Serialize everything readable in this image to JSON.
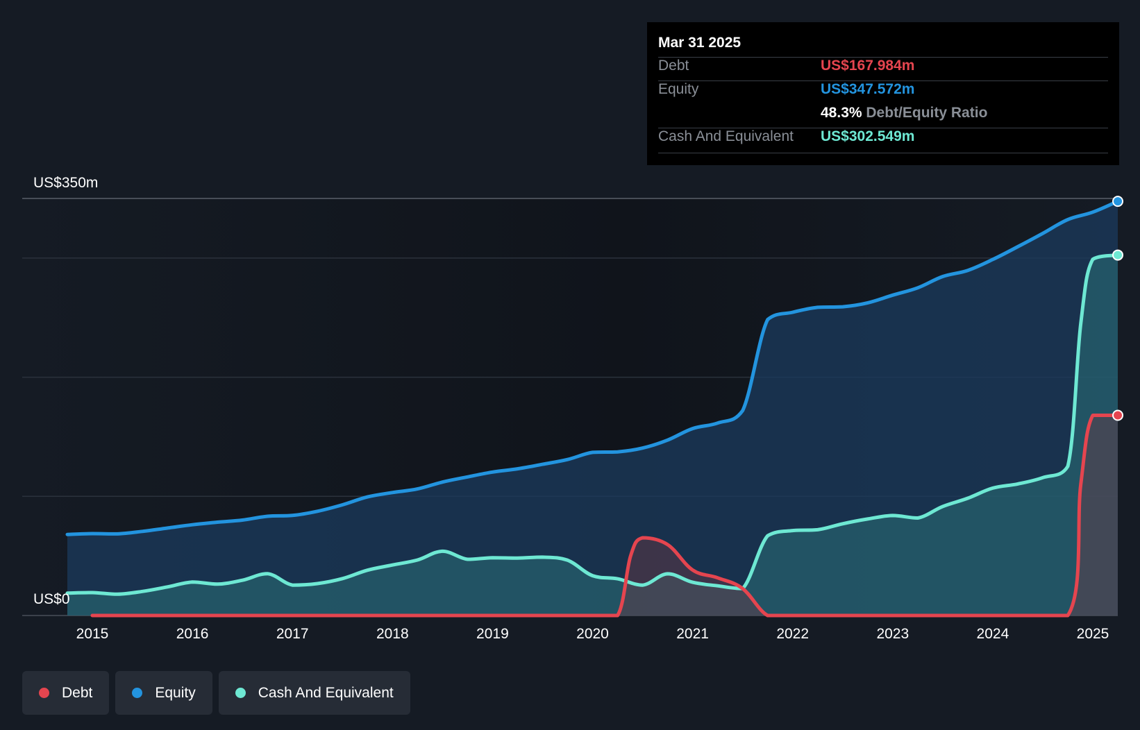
{
  "tooltip": {
    "date": "Mar 31 2025",
    "debt_label": "Debt",
    "debt_value": "US$167.984m",
    "equity_label": "Equity",
    "equity_value": "US$347.572m",
    "ratio_value": "48.3%",
    "ratio_label": "Debt/Equity Ratio",
    "cash_label": "Cash And Equivalent",
    "cash_value": "US$302.549m"
  },
  "legend": {
    "debt": "Debt",
    "equity": "Equity",
    "cash": "Cash And Equivalent"
  },
  "colors": {
    "debt": "#e5454f",
    "equity": "#2394df",
    "cash": "#6ee8d3"
  },
  "chart_data": {
    "type": "area",
    "title": "",
    "xlabel": "",
    "ylabel": "",
    "y_top_label": "US$350m",
    "y_bottom_label": "US$0",
    "ylim": [
      0,
      350
    ],
    "xlim": [
      2014.75,
      2025.25
    ],
    "x_tick_labels": [
      "2015",
      "2016",
      "2017",
      "2018",
      "2019",
      "2020",
      "2021",
      "2022",
      "2023",
      "2024",
      "2025"
    ],
    "x_tick_values": [
      2015,
      2016,
      2017,
      2018,
      2019,
      2020,
      2021,
      2022,
      2023,
      2024,
      2025
    ],
    "series": [
      {
        "name": "Equity",
        "key": "equity",
        "points": [
          [
            2014.75,
            68
          ],
          [
            2015.0,
            68.7
          ],
          [
            2015.25,
            68.5
          ],
          [
            2015.5,
            70.6
          ],
          [
            2015.75,
            73.4
          ],
          [
            2016.0,
            76.2
          ],
          [
            2016.25,
            78.3
          ],
          [
            2016.5,
            80.1
          ],
          [
            2016.75,
            83.3
          ],
          [
            2017.0,
            84.0
          ],
          [
            2017.25,
            87.5
          ],
          [
            2017.5,
            92.9
          ],
          [
            2017.75,
            99.5
          ],
          [
            2018.0,
            103.2
          ],
          [
            2018.25,
            106.2
          ],
          [
            2018.5,
            112.0
          ],
          [
            2018.75,
            116.3
          ],
          [
            2019.0,
            120.4
          ],
          [
            2019.25,
            123.1
          ],
          [
            2019.5,
            126.9
          ],
          [
            2019.75,
            130.9
          ],
          [
            2020.0,
            136.9
          ],
          [
            2020.25,
            137.3
          ],
          [
            2020.5,
            140.5
          ],
          [
            2020.75,
            147.2
          ],
          [
            2021.0,
            156.9
          ],
          [
            2021.25,
            161.5
          ],
          [
            2021.5,
            172.0
          ],
          [
            2021.75,
            248.4
          ],
          [
            2022.0,
            254.5
          ],
          [
            2022.25,
            258.6
          ],
          [
            2022.5,
            259.1
          ],
          [
            2022.75,
            262.4
          ],
          [
            2023.0,
            268.9
          ],
          [
            2023.25,
            275.0
          ],
          [
            2023.5,
            284.5
          ],
          [
            2023.75,
            289.6
          ],
          [
            2024.0,
            298.8
          ],
          [
            2024.25,
            309.5
          ],
          [
            2024.5,
            320.7
          ],
          [
            2024.75,
            332.3
          ],
          [
            2025.0,
            338.5
          ],
          [
            2025.25,
            347.6
          ]
        ]
      },
      {
        "name": "Cash And Equivalent",
        "key": "cash",
        "points": [
          [
            2014.75,
            18.8
          ],
          [
            2015.0,
            19.2
          ],
          [
            2015.25,
            17.9
          ],
          [
            2015.5,
            20.2
          ],
          [
            2015.75,
            24.0
          ],
          [
            2016.0,
            28.1
          ],
          [
            2016.25,
            26.3
          ],
          [
            2016.5,
            29.6
          ],
          [
            2016.75,
            35.1
          ],
          [
            2017.0,
            25.5
          ],
          [
            2017.25,
            26.8
          ],
          [
            2017.5,
            31.0
          ],
          [
            2017.75,
            38.0
          ],
          [
            2018.0,
            42.4
          ],
          [
            2018.25,
            46.6
          ],
          [
            2018.5,
            53.9
          ],
          [
            2018.75,
            47.2
          ],
          [
            2019.0,
            48.5
          ],
          [
            2019.25,
            48.2
          ],
          [
            2019.5,
            49.0
          ],
          [
            2019.75,
            46.4
          ],
          [
            2020.0,
            33.4
          ],
          [
            2020.25,
            30.8
          ],
          [
            2020.5,
            25.5
          ],
          [
            2020.75,
            35.0
          ],
          [
            2021.0,
            27.9
          ],
          [
            2021.25,
            24.9
          ],
          [
            2021.5,
            22.6
          ],
          [
            2021.75,
            67.0
          ],
          [
            2022.0,
            71.3
          ],
          [
            2022.25,
            72.0
          ],
          [
            2022.5,
            77.0
          ],
          [
            2022.75,
            81.0
          ],
          [
            2023.0,
            83.9
          ],
          [
            2023.25,
            81.8
          ],
          [
            2023.5,
            91.5
          ],
          [
            2023.75,
            98.4
          ],
          [
            2024.0,
            106.9
          ],
          [
            2024.25,
            110.4
          ],
          [
            2024.5,
            115.7
          ],
          [
            2024.75,
            125.2
          ],
          [
            2024.88,
            245.0
          ],
          [
            2025.0,
            299.0
          ],
          [
            2025.25,
            302.5
          ]
        ]
      },
      {
        "name": "Debt",
        "key": "debt",
        "points": [
          [
            2015.0,
            0
          ],
          [
            2016.0,
            0
          ],
          [
            2017.0,
            0
          ],
          [
            2018.0,
            0
          ],
          [
            2019.0,
            0
          ],
          [
            2020.0,
            0
          ],
          [
            2020.25,
            0
          ],
          [
            2020.38,
            50.0
          ],
          [
            2020.5,
            65.2
          ],
          [
            2020.75,
            59.5
          ],
          [
            2021.0,
            38.2
          ],
          [
            2021.25,
            31.6
          ],
          [
            2021.5,
            22.6
          ],
          [
            2021.75,
            0
          ],
          [
            2022.0,
            0
          ],
          [
            2023.0,
            0
          ],
          [
            2024.0,
            0
          ],
          [
            2024.75,
            0
          ],
          [
            2024.88,
            110.0
          ],
          [
            2025.0,
            168.0
          ],
          [
            2025.25,
            168.0
          ]
        ]
      }
    ]
  }
}
